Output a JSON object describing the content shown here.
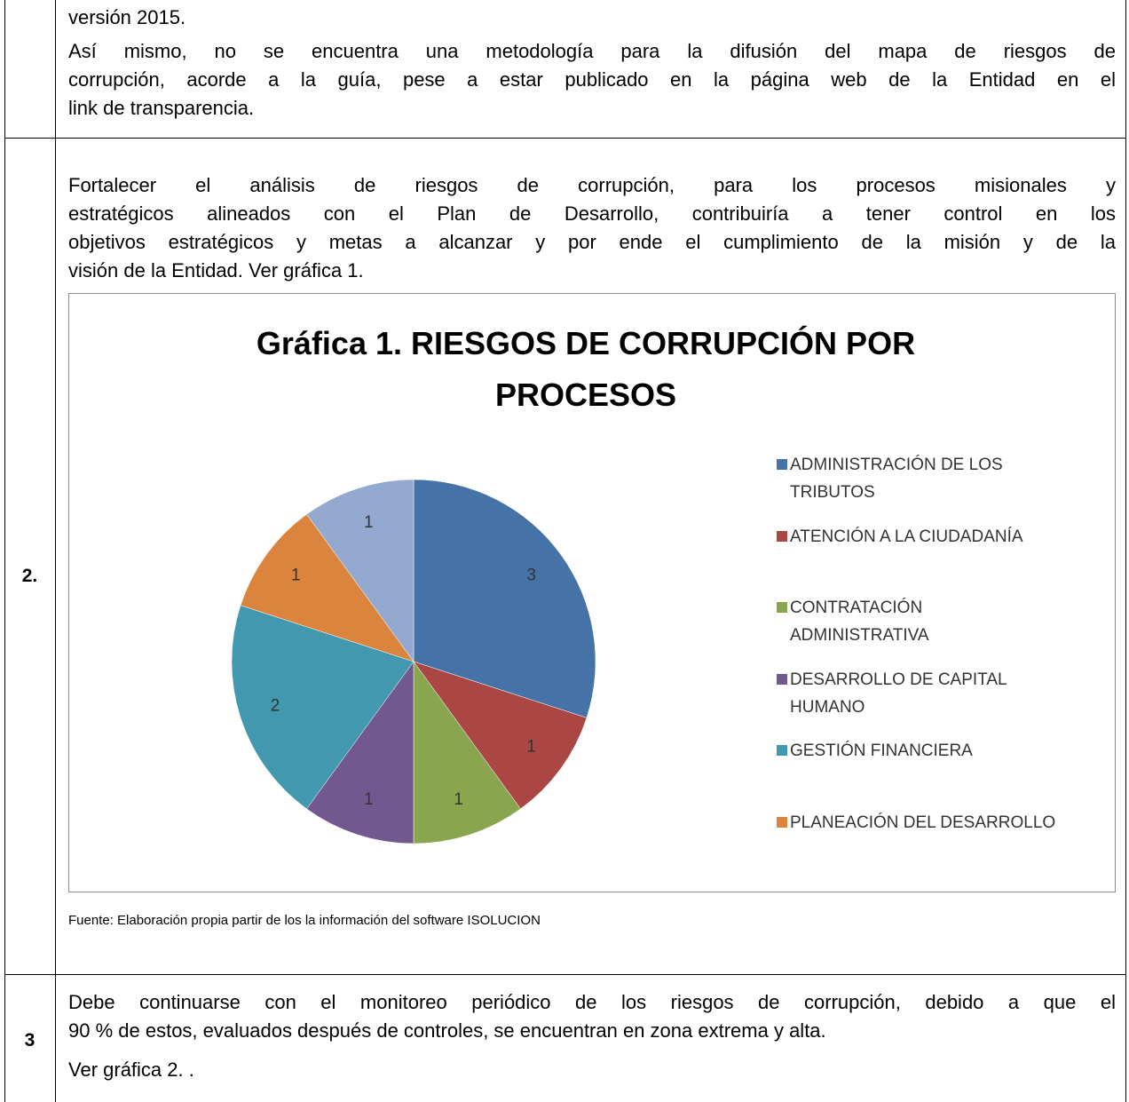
{
  "table": {
    "rows": [
      {
        "paragraphs": [
          [
            "versión 2015."
          ],
          [
            "Así mismo, no se encuentra una metodología para la difusión del mapa de riesgos de",
            "corrupción, acorde a la guía, pese a estar publicado en la página web de la Entidad en el",
            "link de transparencia."
          ]
        ]
      },
      {
        "number": "2.",
        "paragraphs": [
          [
            "Fortalecer el análisis de riesgos de corrupción, para los procesos misionales y",
            "estratégicos alineados con el Plan de Desarrollo, contribuiría a tener control en los",
            "objetivos estratégicos y metas a alcanzar y por ende el cumplimiento de la misión y de la",
            "visión de la Entidad.  Ver gráfica 1."
          ]
        ],
        "source": "Fuente: Elaboración propia partir de los la información del software ISOLUCION"
      },
      {
        "number": "3",
        "paragraphs": [
          [
            "Debe continuarse con el monitoreo periódico de los riesgos de corrupción, debido a que el",
            "90 % de estos, evaluados después de controles, se encuentran en zona extrema y alta."
          ],
          [
            "Ver gráfica 2. ."
          ]
        ]
      }
    ]
  },
  "chart_data": {
    "type": "pie",
    "title": "Gráfica 1. RIESGOS DE CORRUPCIÓN POR PROCESOS",
    "categories": [
      "ADMINISTRACIÓN DE LOS TRIBUTOS",
      "ATENCIÓN A LA CIUDADANÍA",
      "CONTRATACIÓN ADMINISTRATIVA",
      "DESARROLLO DE CAPITAL HUMANO",
      "GESTIÓN FINANCIERA",
      "PLANEACIÓN DEL DESARROLLO",
      null
    ],
    "values": [
      3,
      1,
      1,
      1,
      2,
      1,
      1
    ],
    "colors": [
      "#4572a7",
      "#aa4643",
      "#89a54e",
      "#71588f",
      "#4198af",
      "#db843d",
      "#93a9cf"
    ]
  }
}
